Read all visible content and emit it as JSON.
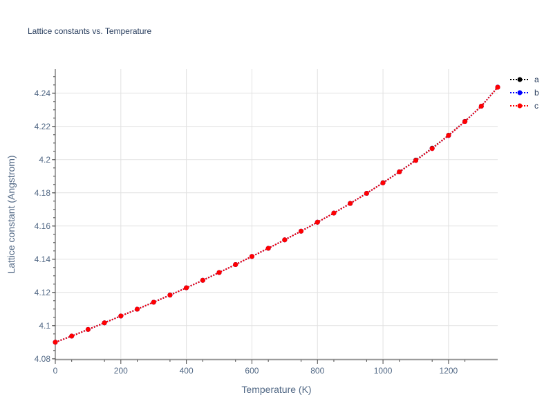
{
  "chart_data": {
    "type": "line",
    "title": "Lattice constants vs. Temperature",
    "xlabel": "Temperature (K)",
    "ylabel": "Lattice constant (Angstrom)",
    "xlim": [
      0,
      1350
    ],
    "ylim": [
      4.0795,
      4.2545
    ],
    "x_ticks": [
      0,
      200,
      400,
      600,
      800,
      1000,
      1200
    ],
    "x_tick_labels": [
      "0",
      "200",
      "400",
      "600",
      "800",
      "1000",
      "1200"
    ],
    "y_ticks": [
      4.08,
      4.1,
      4.12,
      4.14,
      4.16,
      4.18,
      4.2,
      4.22,
      4.24
    ],
    "y_tick_labels": [
      "4.08",
      "4.1",
      "4.12",
      "4.14",
      "4.16",
      "4.18",
      "4.2",
      "4.22",
      "4.24"
    ],
    "grid": true,
    "legend_position": "top-right",
    "x": [
      0,
      50,
      100,
      150,
      200,
      250,
      300,
      350,
      400,
      450,
      500,
      550,
      600,
      650,
      700,
      750,
      800,
      850,
      900,
      950,
      1000,
      1050,
      1100,
      1150,
      1200,
      1250,
      1300,
      1350
    ],
    "series": [
      {
        "name": "a",
        "color": "#000000",
        "values": [
          4.09,
          4.0937,
          4.0977,
          4.1017,
          4.1058,
          4.1099,
          4.1141,
          4.1184,
          4.1228,
          4.1273,
          4.132,
          4.1368,
          4.1417,
          4.1466,
          4.1517,
          4.1569,
          4.1623,
          4.1678,
          4.1736,
          4.1797,
          4.1861,
          4.1927,
          4.1997,
          4.2069,
          4.2147,
          4.2231,
          4.2322,
          4.2436
        ]
      },
      {
        "name": "b",
        "color": "#0000ff",
        "values": [
          4.09,
          4.0937,
          4.0977,
          4.1017,
          4.1058,
          4.1099,
          4.1141,
          4.1184,
          4.1228,
          4.1273,
          4.132,
          4.1368,
          4.1417,
          4.1466,
          4.1517,
          4.1569,
          4.1623,
          4.1678,
          4.1736,
          4.1797,
          4.186,
          4.1926,
          4.1995,
          4.2067,
          4.2145,
          4.223,
          4.2322,
          4.2437
        ]
      },
      {
        "name": "c",
        "color": "#ff0000",
        "values": [
          4.09,
          4.0937,
          4.0977,
          4.1017,
          4.1058,
          4.1099,
          4.1141,
          4.1184,
          4.1228,
          4.1273,
          4.132,
          4.1368,
          4.1417,
          4.1466,
          4.1517,
          4.1569,
          4.1623,
          4.1678,
          4.1736,
          4.1797,
          4.186,
          4.1926,
          4.1995,
          4.2067,
          4.2146,
          4.223,
          4.2322,
          4.2436
        ]
      }
    ]
  }
}
